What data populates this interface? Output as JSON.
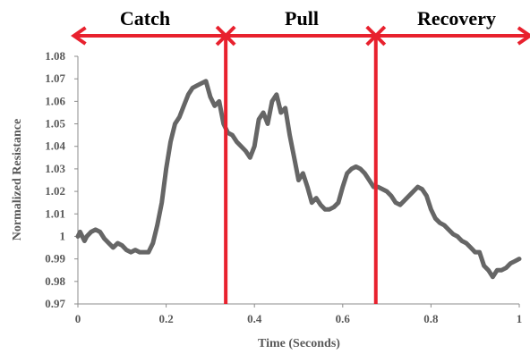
{
  "chart_data": {
    "type": "line",
    "xlabel": "Time (Seconds)",
    "ylabel": "Normalized Resistance",
    "xlim": [
      0,
      1
    ],
    "ylim": [
      0.97,
      1.08
    ],
    "x_ticks": [
      "0",
      "0.2",
      "0.4",
      "0.6",
      "0.8",
      "1"
    ],
    "y_ticks": [
      "0.97",
      "0.98",
      "0.99",
      "1",
      "1.01",
      "1.02",
      "1.03",
      "1.04",
      "1.05",
      "1.06",
      "1.07",
      "1.08"
    ],
    "grid": false,
    "series": [
      {
        "color": "#666666",
        "x": [
          0,
          0.005,
          0.01,
          0.015,
          0.02,
          0.03,
          0.04,
          0.05,
          0.06,
          0.07,
          0.08,
          0.09,
          0.1,
          0.11,
          0.12,
          0.13,
          0.14,
          0.15,
          0.16,
          0.17,
          0.18,
          0.19,
          0.2,
          0.21,
          0.22,
          0.23,
          0.24,
          0.25,
          0.26,
          0.27,
          0.28,
          0.29,
          0.3,
          0.31,
          0.32,
          0.33,
          0.34,
          0.35,
          0.36,
          0.37,
          0.38,
          0.39,
          0.4,
          0.41,
          0.42,
          0.43,
          0.44,
          0.45,
          0.46,
          0.47,
          0.48,
          0.49,
          0.5,
          0.51,
          0.52,
          0.53,
          0.54,
          0.55,
          0.56,
          0.57,
          0.58,
          0.59,
          0.6,
          0.61,
          0.62,
          0.63,
          0.64,
          0.65,
          0.66,
          0.67,
          0.68,
          0.69,
          0.7,
          0.71,
          0.72,
          0.73,
          0.74,
          0.75,
          0.76,
          0.77,
          0.78,
          0.79,
          0.8,
          0.81,
          0.82,
          0.83,
          0.84,
          0.85,
          0.86,
          0.87,
          0.88,
          0.89,
          0.9,
          0.91,
          0.92,
          0.93,
          0.94,
          0.95,
          0.96,
          0.97,
          0.98,
          0.99,
          1.0
        ],
        "values": [
          1.0,
          1.002,
          1.0,
          0.998,
          1.0,
          1.002,
          1.003,
          1.002,
          0.999,
          0.997,
          0.995,
          0.997,
          0.996,
          0.994,
          0.993,
          0.994,
          0.993,
          0.993,
          0.993,
          0.997,
          1.005,
          1.015,
          1.03,
          1.042,
          1.05,
          1.053,
          1.058,
          1.063,
          1.066,
          1.067,
          1.068,
          1.069,
          1.062,
          1.058,
          1.06,
          1.05,
          1.046,
          1.045,
          1.042,
          1.04,
          1.038,
          1.035,
          1.04,
          1.052,
          1.055,
          1.05,
          1.06,
          1.063,
          1.055,
          1.057,
          1.045,
          1.035,
          1.025,
          1.028,
          1.022,
          1.015,
          1.017,
          1.014,
          1.012,
          1.012,
          1.013,
          1.015,
          1.022,
          1.028,
          1.03,
          1.031,
          1.03,
          1.028,
          1.025,
          1.022,
          1.022,
          1.021,
          1.02,
          1.018,
          1.015,
          1.014,
          1.016,
          1.018,
          1.02,
          1.022,
          1.021,
          1.018,
          1.012,
          1.008,
          1.006,
          1.005,
          1.003,
          1.001,
          1.0,
          0.998,
          0.997,
          0.995,
          0.993,
          0.993,
          0.987,
          0.985,
          0.982,
          0.985,
          0.985,
          0.986,
          0.988,
          0.989,
          0.99
        ]
      }
    ],
    "phases": [
      {
        "label": "Catch",
        "start": -0.005,
        "end": 0.335
      },
      {
        "label": "Pull",
        "start": 0.335,
        "end": 0.675
      },
      {
        "label": "Recovery",
        "start": 0.675,
        "end": 1.02
      }
    ],
    "phase_color": "#e8212e"
  }
}
